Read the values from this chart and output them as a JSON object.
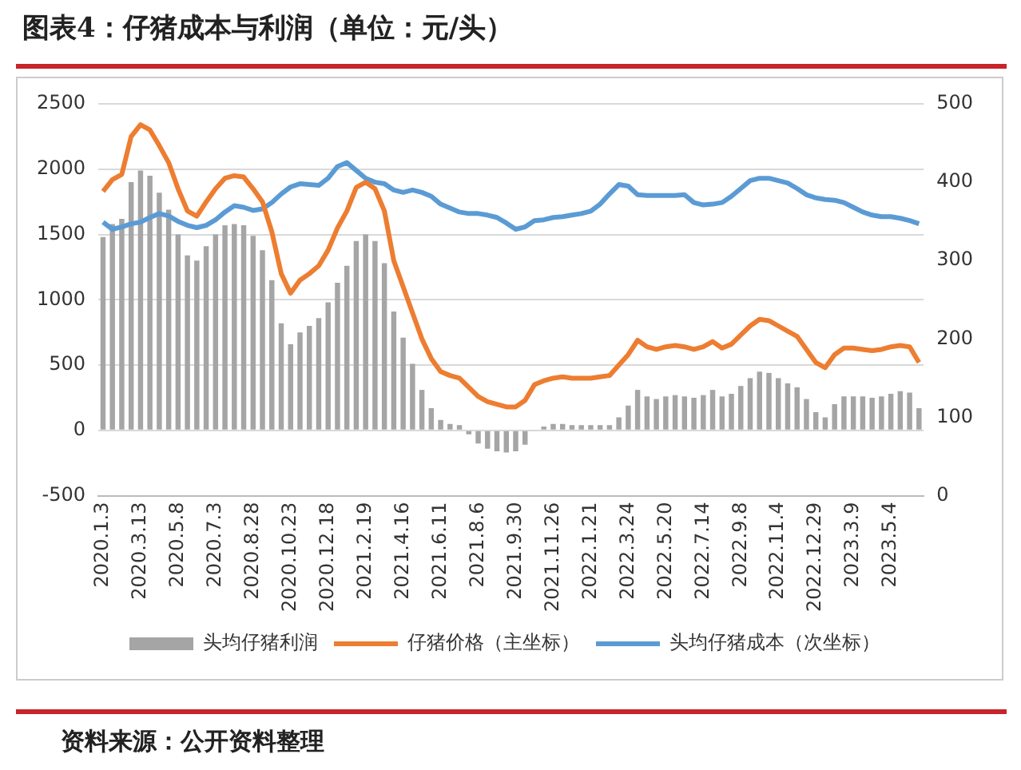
{
  "chart_data": {
    "type": "bar",
    "title": "图表4：仔猪成本与利润（单位：元/头）",
    "categories": [
      "2020.1.3",
      null,
      null,
      null,
      "2020.3.13",
      null,
      null,
      null,
      "2020.5.8",
      null,
      null,
      null,
      "2020.7.3",
      null,
      null,
      null,
      "2020.8.28",
      null,
      null,
      null,
      "2020.10.23",
      null,
      null,
      null,
      "2020.12.18",
      null,
      null,
      null,
      "2021.2.19",
      null,
      null,
      null,
      "2021.4.16",
      null,
      null,
      null,
      "2021.6.11",
      null,
      null,
      null,
      "2021.8.6",
      null,
      null,
      null,
      "2021.9.30",
      null,
      null,
      null,
      "2021.11.26",
      null,
      null,
      null,
      "2022.1.21",
      null,
      null,
      null,
      "2022.3.24",
      null,
      null,
      null,
      "2022.5.20",
      null,
      null,
      null,
      "2022.7.14",
      null,
      null,
      null,
      "2022.9.8",
      null,
      null,
      null,
      "2022.11.4",
      null,
      null,
      null,
      "2022.12.29",
      null,
      null,
      null,
      "2023.3.9",
      null,
      null,
      null,
      "2023.5.4",
      null,
      null,
      null
    ],
    "series": [
      {
        "name": "头均仔猪利润",
        "color": "#a5a5a5",
        "values": [
          1480,
          1580,
          1620,
          1900,
          1990,
          1950,
          1820,
          1690,
          1500,
          1340,
          1300,
          1410,
          1500,
          1570,
          1580,
          1570,
          1490,
          1380,
          1150,
          820,
          660,
          750,
          800,
          860,
          980,
          1130,
          1260,
          1450,
          1500,
          1450,
          1280,
          910,
          710,
          510,
          310,
          170,
          80,
          50,
          40,
          -30,
          -100,
          -140,
          -160,
          -170,
          -160,
          -110,
          0,
          30,
          50,
          50,
          40,
          40,
          40,
          40,
          40,
          100,
          190,
          310,
          260,
          240,
          260,
          270,
          260,
          250,
          270,
          310,
          260,
          280,
          340,
          400,
          450,
          440,
          400,
          360,
          330,
          240,
          140,
          100,
          200,
          260,
          260,
          260,
          250,
          260,
          280,
          300,
          290,
          170
        ]
      },
      {
        "name": "仔猪价格（主坐标）",
        "type": "line",
        "color": "#ed7d31",
        "values": [
          1830,
          1920,
          1960,
          2250,
          2340,
          2300,
          2180,
          2050,
          1850,
          1680,
          1640,
          1750,
          1850,
          1930,
          1950,
          1940,
          1850,
          1750,
          1520,
          1200,
          1050,
          1150,
          1200,
          1260,
          1380,
          1550,
          1680,
          1860,
          1900,
          1850,
          1680,
          1300,
          1100,
          900,
          700,
          550,
          450,
          420,
          400,
          330,
          260,
          220,
          200,
          180,
          180,
          230,
          350,
          380,
          400,
          410,
          400,
          400,
          400,
          410,
          420,
          500,
          580,
          690,
          640,
          620,
          640,
          650,
          640,
          620,
          640,
          680,
          630,
          660,
          730,
          800,
          850,
          840,
          800,
          760,
          720,
          620,
          520,
          480,
          580,
          630,
          630,
          620,
          610,
          620,
          640,
          650,
          640,
          520
        ]
      },
      {
        "name": "头均仔猪成本（次坐标）",
        "type": "line",
        "axis": "y2",
        "color": "#5b9bd5",
        "values": [
          349,
          340,
          343,
          347,
          349,
          355,
          360,
          357,
          350,
          345,
          342,
          345,
          352,
          362,
          370,
          368,
          364,
          366,
          374,
          385,
          394,
          398,
          397,
          396,
          405,
          420,
          425,
          415,
          405,
          400,
          398,
          390,
          387,
          390,
          387,
          382,
          372,
          367,
          362,
          360,
          360,
          358,
          355,
          348,
          340,
          343,
          351,
          352,
          355,
          356,
          358,
          360,
          363,
          372,
          385,
          397,
          395,
          384,
          383,
          383,
          383,
          383,
          384,
          374,
          371,
          372,
          374,
          382,
          392,
          402,
          405,
          405,
          402,
          399,
          392,
          384,
          380,
          378,
          377,
          374,
          368,
          362,
          358,
          356,
          356,
          354,
          351,
          347
        ]
      }
    ],
    "ylim": [
      -500,
      2500
    ],
    "yticks": [
      -500,
      0,
      500,
      1000,
      1500,
      2000,
      2500
    ],
    "y2lim": [
      0,
      500
    ],
    "y2ticks": [
      0,
      100,
      200,
      300,
      400,
      500
    ],
    "grid": "y",
    "legend": "bottom",
    "marker": "none",
    "line_style": "solid",
    "annotations": [
      "资料来源：公开资料整理"
    ]
  }
}
